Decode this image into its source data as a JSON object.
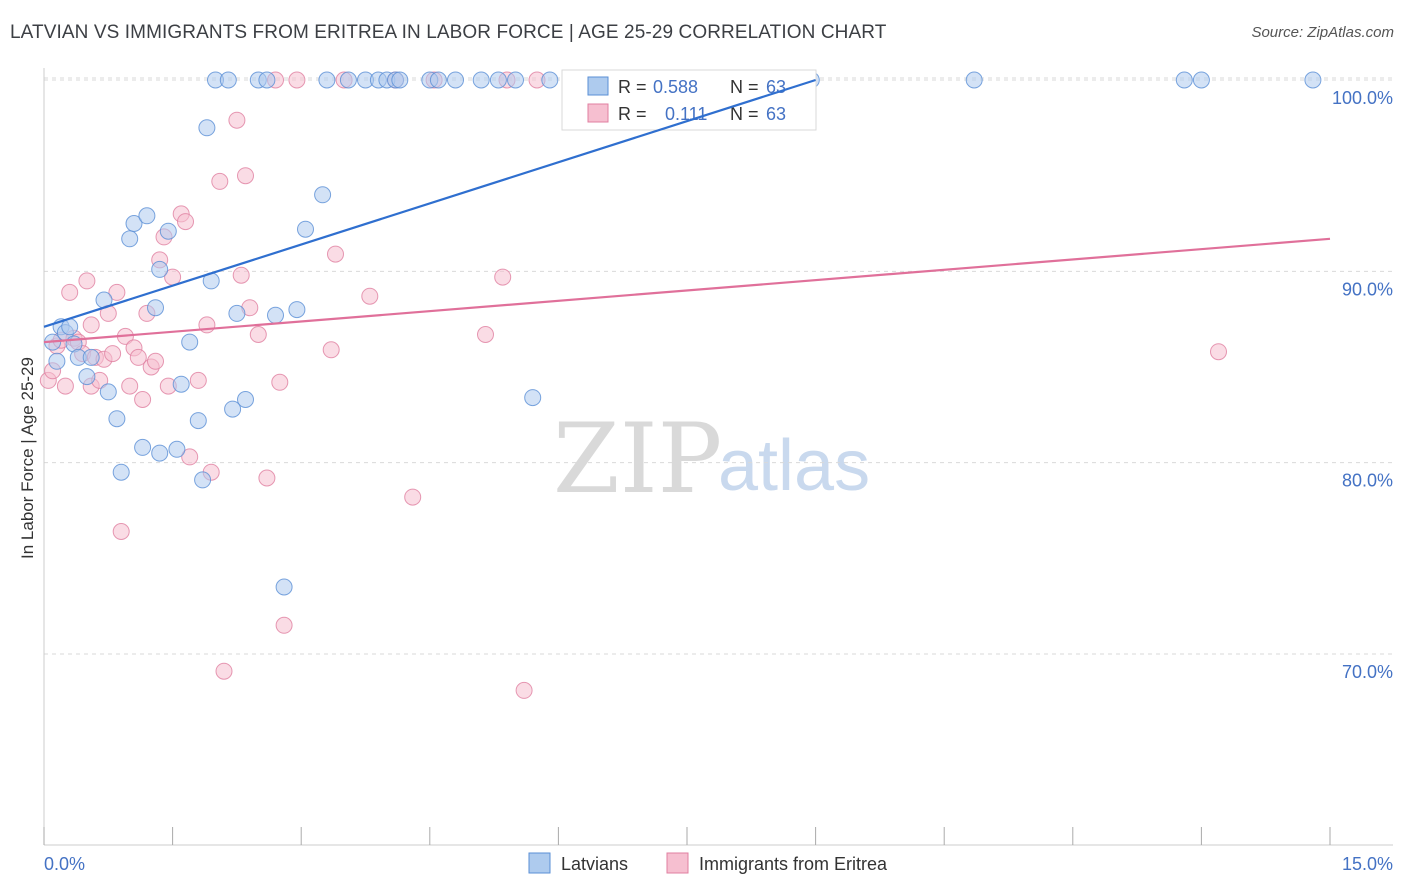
{
  "header": {
    "title": "LATVIAN VS IMMIGRANTS FROM ERITREA IN LABOR FORCE | AGE 25-29 CORRELATION CHART",
    "source": "Source: ZipAtlas.com"
  },
  "watermark": {
    "zip": "ZIP",
    "atlas": "atlas"
  },
  "colors": {
    "latvian_fill": "#aecbee",
    "latvian_stroke": "#5a8fd6",
    "latvian_line": "#2f6fcf",
    "eritrea_fill": "#f6bfd0",
    "eritrea_stroke": "#e07fa0",
    "eritrea_line": "#e0709a",
    "grid": "#d9d9d9",
    "axis_text": "#4472c4"
  },
  "stats_legend": [
    {
      "r_label": "R =",
      "r_value": "0.588",
      "n_label": "N =",
      "n_value": "63"
    },
    {
      "r_label": "R =",
      "r_value": "0.111",
      "n_label": "N =",
      "n_value": "63"
    }
  ],
  "chart_data": {
    "type": "scatter",
    "title": "LATVIAN VS IMMIGRANTS FROM ERITREA IN LABOR FORCE | AGE 25-29 CORRELATION CHART",
    "xlabel": "",
    "ylabel": "In Labor Force | Age 25-29",
    "xlim": [
      0,
      15
    ],
    "ylim": [
      60,
      101.5
    ],
    "x_tick_labels": [
      "0.0%",
      "15.0%"
    ],
    "y_ticks": [
      70,
      80,
      90,
      100
    ],
    "y_tick_labels": [
      "70.0%",
      "80.0%",
      "90.0%",
      "100.0%"
    ],
    "legend_position": "bottom-center",
    "series": [
      {
        "name": "Latvians",
        "trend": {
          "x": [
            0.0,
            9.0
          ],
          "y": [
            87.1,
            100.0
          ]
        },
        "points": [
          [
            0.1,
            86.3
          ],
          [
            0.15,
            85.3
          ],
          [
            0.2,
            87.1
          ],
          [
            0.25,
            86.8
          ],
          [
            0.3,
            87.1
          ],
          [
            0.35,
            86.2
          ],
          [
            0.4,
            85.5
          ],
          [
            0.5,
            84.5
          ],
          [
            0.55,
            85.5
          ],
          [
            0.7,
            88.5
          ],
          [
            0.75,
            83.7
          ],
          [
            0.85,
            82.3
          ],
          [
            0.9,
            79.5
          ],
          [
            1.0,
            91.7
          ],
          [
            1.05,
            92.5
          ],
          [
            1.15,
            80.8
          ],
          [
            1.2,
            92.9
          ],
          [
            1.3,
            88.1
          ],
          [
            1.35,
            80.5
          ],
          [
            1.35,
            90.1
          ],
          [
            1.45,
            92.1
          ],
          [
            1.55,
            80.7
          ],
          [
            1.6,
            84.1
          ],
          [
            1.7,
            86.3
          ],
          [
            1.8,
            82.2
          ],
          [
            1.85,
            79.1
          ],
          [
            1.9,
            97.5
          ],
          [
            1.95,
            89.5
          ],
          [
            2.0,
            100.0
          ],
          [
            2.15,
            100.0
          ],
          [
            2.2,
            82.8
          ],
          [
            2.25,
            87.8
          ],
          [
            2.35,
            83.3
          ],
          [
            2.5,
            100.0
          ],
          [
            2.6,
            100.0
          ],
          [
            2.7,
            87.7
          ],
          [
            2.8,
            73.5
          ],
          [
            2.95,
            88.0
          ],
          [
            3.05,
            92.2
          ],
          [
            3.3,
            100.0
          ],
          [
            3.25,
            94.0
          ],
          [
            3.55,
            100.0
          ],
          [
            3.75,
            100.0
          ],
          [
            3.9,
            100.0
          ],
          [
            4.0,
            100.0
          ],
          [
            4.1,
            100.0
          ],
          [
            4.15,
            100.0
          ],
          [
            4.5,
            100.0
          ],
          [
            4.6,
            100.0
          ],
          [
            4.8,
            100.0
          ],
          [
            5.1,
            100.0
          ],
          [
            5.3,
            100.0
          ],
          [
            5.5,
            100.0
          ],
          [
            5.7,
            83.4
          ],
          [
            5.9,
            100.0
          ],
          [
            6.15,
            100.0
          ],
          [
            6.2,
            100.0
          ],
          [
            6.55,
            100.0
          ],
          [
            8.95,
            100.0
          ],
          [
            10.85,
            100.0
          ],
          [
            13.3,
            100.0
          ],
          [
            13.5,
            100.0
          ],
          [
            14.8,
            100.0
          ]
        ]
      },
      {
        "name": "Immigrants from Eritrea",
        "trend": {
          "x": [
            0.0,
            15.0
          ],
          "y": [
            86.3,
            91.7
          ]
        },
        "points": [
          [
            0.05,
            84.3
          ],
          [
            0.1,
            84.8
          ],
          [
            0.15,
            86.1
          ],
          [
            0.2,
            86.4
          ],
          [
            0.25,
            84.0
          ],
          [
            0.3,
            88.9
          ],
          [
            0.35,
            86.5
          ],
          [
            0.4,
            86.3
          ],
          [
            0.45,
            85.7
          ],
          [
            0.5,
            89.5
          ],
          [
            0.55,
            87.2
          ],
          [
            0.55,
            84.0
          ],
          [
            0.6,
            85.5
          ],
          [
            0.65,
            84.3
          ],
          [
            0.7,
            85.4
          ],
          [
            0.75,
            87.8
          ],
          [
            0.8,
            85.7
          ],
          [
            0.85,
            88.9
          ],
          [
            0.9,
            76.4
          ],
          [
            0.95,
            86.6
          ],
          [
            1.0,
            84.0
          ],
          [
            1.05,
            86.0
          ],
          [
            1.1,
            85.5
          ],
          [
            1.15,
            83.3
          ],
          [
            1.2,
            87.8
          ],
          [
            1.25,
            85.0
          ],
          [
            1.3,
            85.3
          ],
          [
            1.35,
            90.6
          ],
          [
            1.4,
            91.8
          ],
          [
            1.45,
            84.0
          ],
          [
            1.5,
            89.7
          ],
          [
            1.6,
            93.0
          ],
          [
            1.65,
            92.6
          ],
          [
            1.7,
            80.3
          ],
          [
            1.8,
            84.3
          ],
          [
            1.9,
            87.2
          ],
          [
            1.95,
            79.5
          ],
          [
            2.05,
            94.7
          ],
          [
            2.1,
            69.1
          ],
          [
            2.25,
            97.9
          ],
          [
            2.3,
            89.8
          ],
          [
            2.35,
            95.0
          ],
          [
            2.4,
            88.1
          ],
          [
            2.5,
            86.7
          ],
          [
            2.6,
            79.2
          ],
          [
            2.7,
            100.0
          ],
          [
            2.75,
            84.2
          ],
          [
            2.8,
            71.5
          ],
          [
            2.95,
            100.0
          ],
          [
            3.35,
            85.9
          ],
          [
            3.4,
            90.9
          ],
          [
            3.5,
            100.0
          ],
          [
            3.8,
            88.7
          ],
          [
            4.1,
            100.0
          ],
          [
            4.3,
            78.2
          ],
          [
            4.55,
            100.0
          ],
          [
            5.15,
            86.7
          ],
          [
            5.35,
            89.7
          ],
          [
            5.4,
            100.0
          ],
          [
            5.6,
            68.1
          ],
          [
            5.75,
            100.0
          ],
          [
            6.5,
            100.0
          ],
          [
            13.7,
            85.8
          ]
        ]
      }
    ]
  }
}
